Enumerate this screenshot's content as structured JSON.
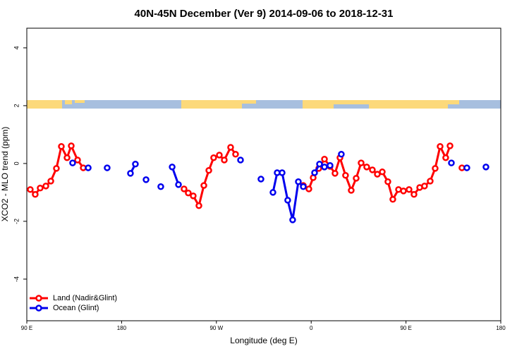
{
  "chart_data": {
    "type": "line",
    "title": "40N-45N December (Ver 9)   2014-09-06 to 2018-12-31",
    "xlabel": "Longitude (deg E)",
    "ylabel": "XCO2 - MLO trend (ppm)",
    "xlim": [
      90,
      540
    ],
    "xticks": [
      {
        "value": 90,
        "label": "90 E"
      },
      180,
      {
        "value": 270,
        "label": "90 W"
      },
      {
        "value": 360,
        "label": "0"
      },
      {
        "value": 450,
        "label": "90 E"
      },
      {
        "value": 540,
        "label": "180"
      }
    ],
    "ylim": [
      -5.44,
      4.68
    ],
    "yticks": [
      -4,
      -2,
      0,
      2,
      4
    ],
    "legend": "bottom-left",
    "series": [
      {
        "name": "Land (Nadir&Glint)",
        "color": "#ff0000",
        "x": [
          93.3,
          98.0,
          102.7,
          108.1,
          112.8,
          118.1,
          122.8,
          128.2,
          132.2,
          138.2,
          143.6,
          null,
          239.3,
          243.3,
          248.0,
          253.4,
          258.1,
          262.8,
          267.4,
          272.8,
          277.5,
          283.5,
          288.2,
          null,
          352.5,
          357.8,
          361.9,
          367.2,
          372.6,
          377.9,
          382.6,
          387.3,
          392.6,
          398.0,
          402.7,
          407.4,
          412.7,
          418.1,
          422.8,
          427.5,
          432.8,
          437.5,
          442.9,
          447.6,
          452.9,
          457.6,
          463.0,
          467.6,
          473.0,
          477.7,
          482.4,
          487.7,
          491.8,
          null,
          503.1
        ],
        "values": [
          -0.9,
          -1.07,
          -0.85,
          -0.78,
          -0.61,
          -0.17,
          0.59,
          0.2,
          0.61,
          0.12,
          -0.15,
          null,
          -0.88,
          -1.02,
          -1.12,
          -1.46,
          -0.76,
          -0.24,
          0.2,
          0.29,
          0.12,
          0.56,
          0.32,
          null,
          -0.76,
          -0.88,
          -0.49,
          -0.17,
          0.15,
          -0.1,
          -0.34,
          0.2,
          -0.41,
          -0.93,
          -0.51,
          0.02,
          -0.12,
          -0.22,
          -0.37,
          -0.29,
          -0.63,
          -1.24,
          -0.9,
          -0.95,
          -0.9,
          -1.07,
          -0.83,
          -0.78,
          -0.61,
          -0.17,
          0.59,
          0.2,
          0.61,
          null,
          -0.15
        ]
      },
      {
        "name": "Ocean (Glint)",
        "color": "#0000ee",
        "x": [
          133.5,
          null,
          148.3,
          null,
          166.3,
          null,
          188.4,
          193.1,
          null,
          203.2,
          null,
          217.2,
          null,
          228.0,
          234.0,
          null,
          292.9,
          null,
          312.3,
          null,
          323.7,
          327.7,
          332.4,
          337.7,
          342.4,
          347.8,
          352.5,
          null,
          363.2,
          367.9,
          372.6,
          377.9,
          null,
          388.6,
          null,
          493.1,
          null,
          507.8,
          null,
          525.9
        ],
        "values": [
          0.02,
          null,
          -0.15,
          null,
          -0.15,
          null,
          -0.34,
          -0.02,
          null,
          -0.56,
          null,
          -0.8,
          null,
          -0.12,
          -0.73,
          null,
          0.12,
          null,
          -0.54,
          null,
          -1.0,
          -0.32,
          -0.32,
          -1.27,
          -1.95,
          -0.63,
          -0.8,
          null,
          -0.32,
          -0.02,
          -0.12,
          -0.07,
          null,
          0.32,
          null,
          0.02,
          null,
          -0.15,
          null,
          -0.12
        ]
      }
    ]
  }
}
